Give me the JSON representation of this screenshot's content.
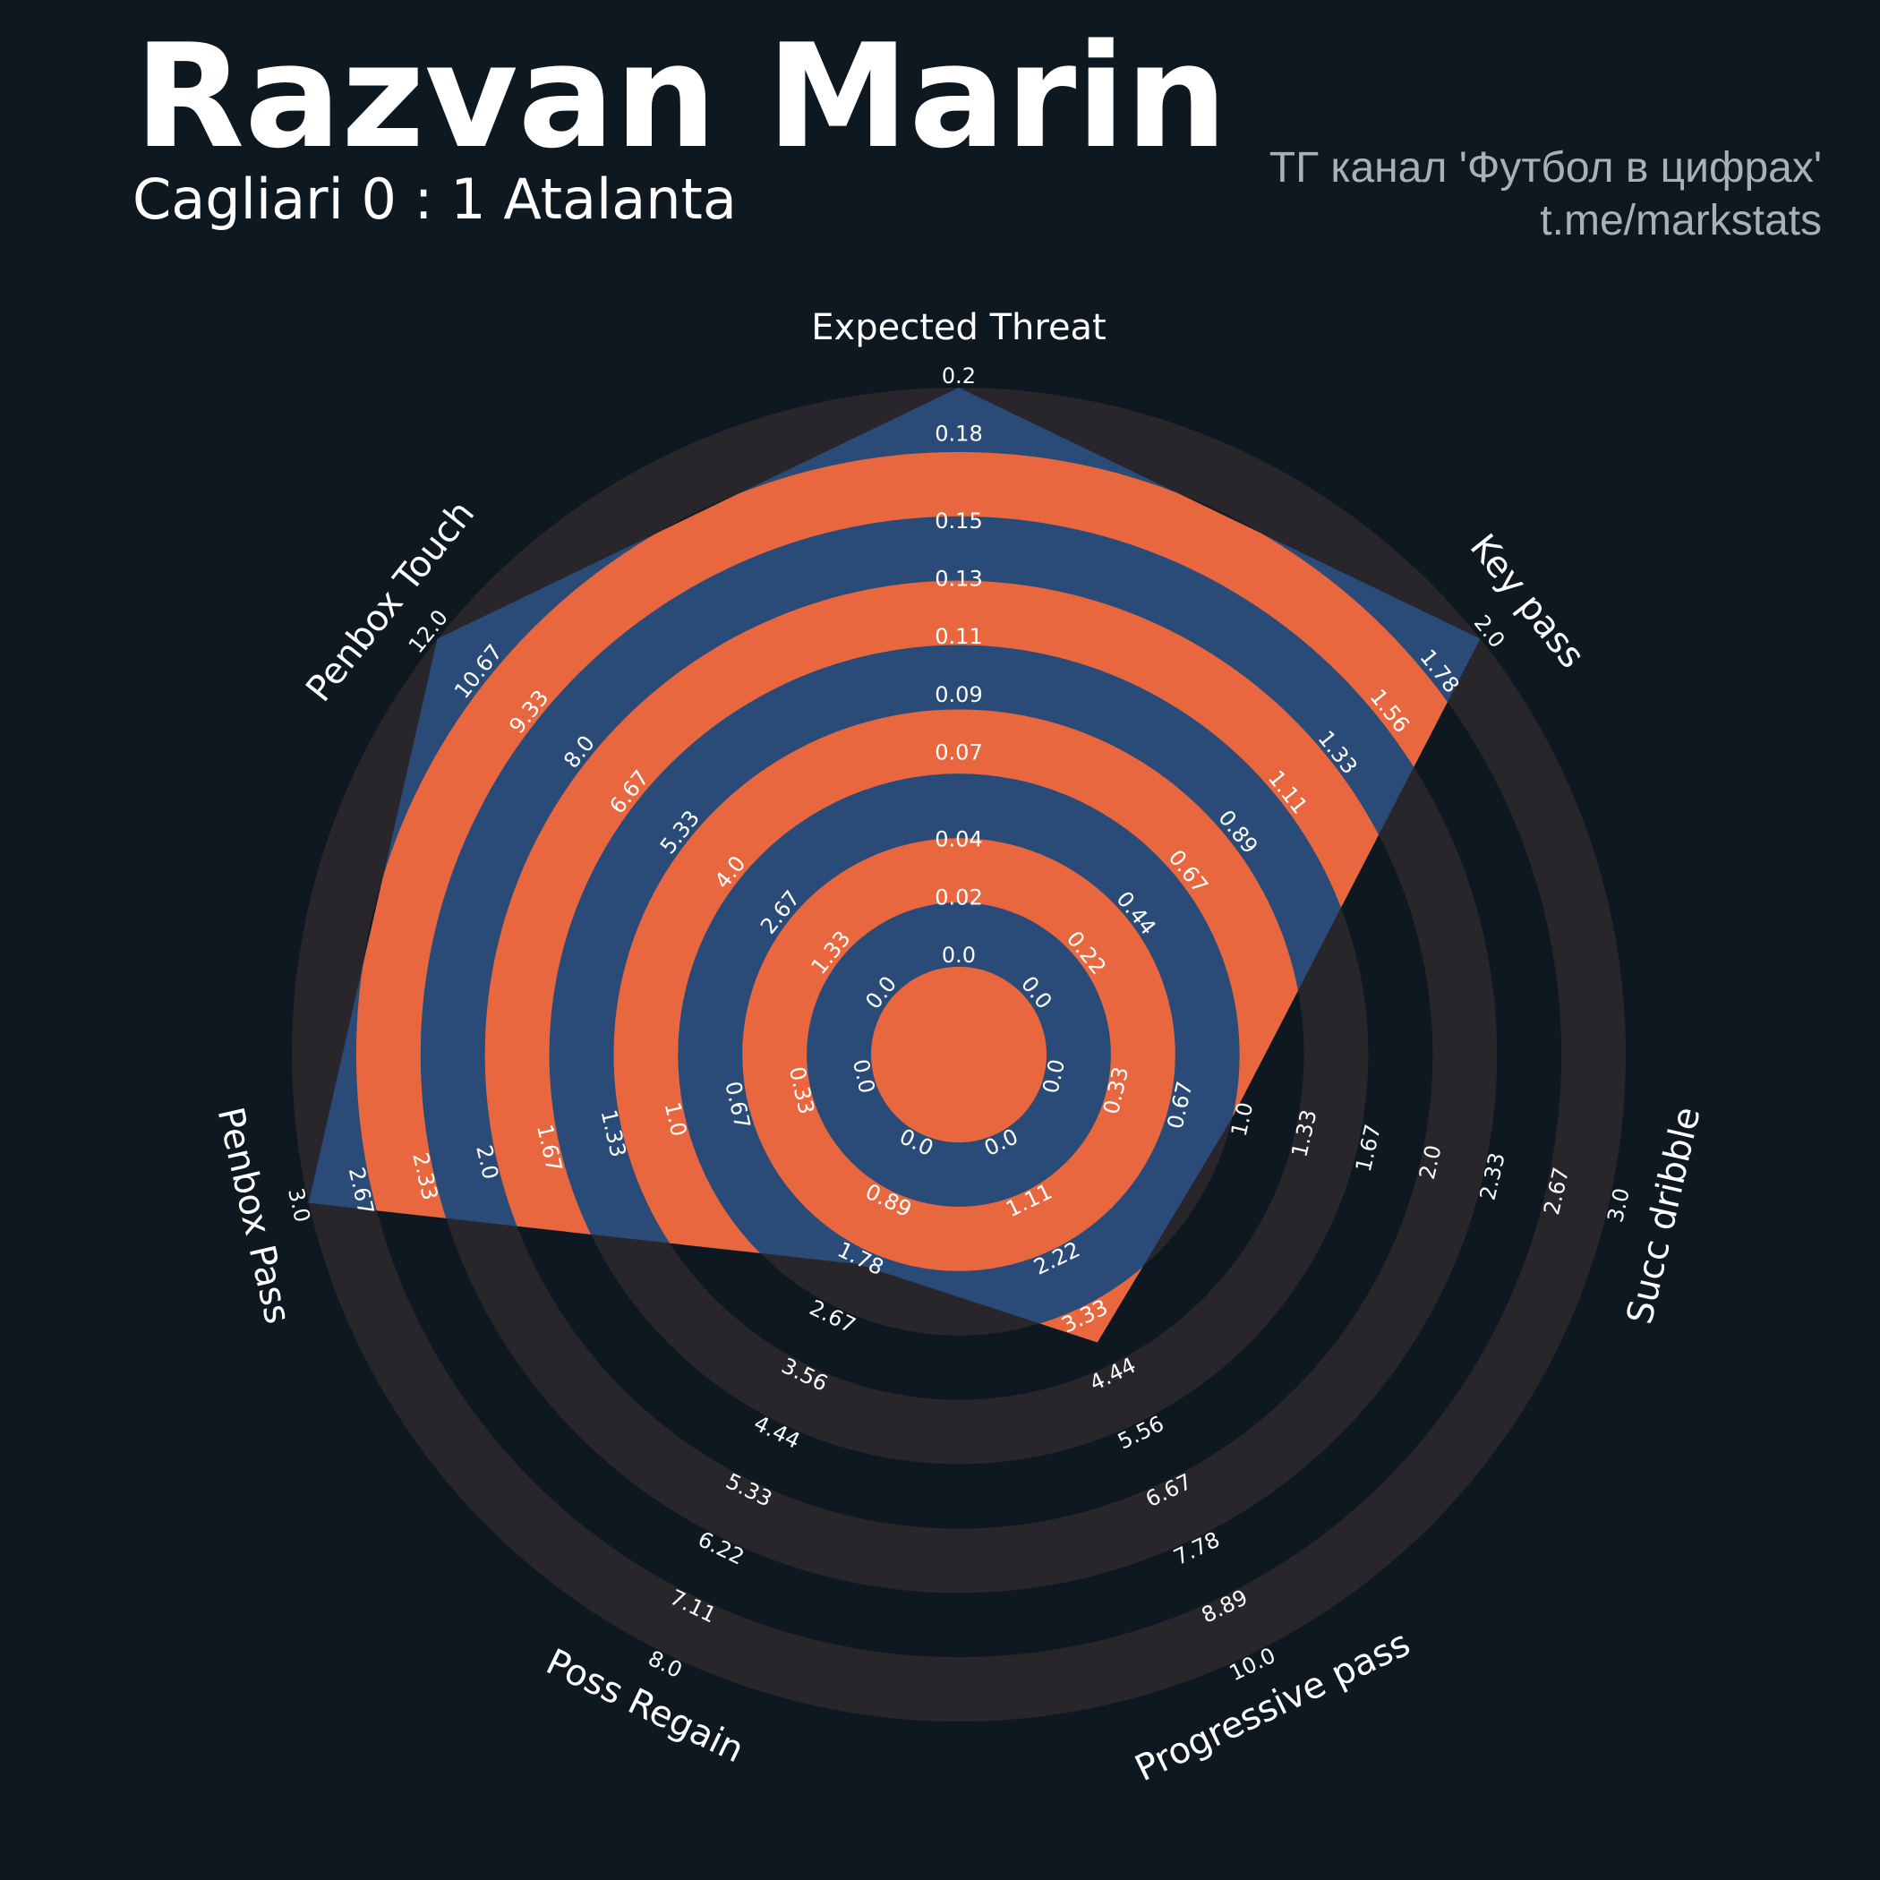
{
  "chart_data": {
    "type": "radar",
    "title": "Razvan Marin",
    "subtitle": "Cagliari 0 : 1 Atalanta",
    "annotations": [
      "ТГ канал 'Футбол в цифрах'",
      "t.me/markstats"
    ],
    "categories": [
      "Expected Threat",
      "Key pass",
      "Succ dribble",
      "Progressive pass",
      "Poss Regain",
      "Penbox Pass",
      "Penbox Touch"
    ],
    "values": [
      0.2,
      2,
      1,
      4,
      2,
      3,
      12
    ],
    "color": "#2a4b78",
    "ring_color": "#e8673f",
    "background_ring_color": "#28252b",
    "axes": [
      {
        "lim": [
          0,
          0.2
        ],
        "ticks": [
          {
            "value": 0,
            "label": "0.0"
          },
          0.02,
          0.04,
          0.07,
          0.09,
          0.11,
          0.13,
          0.15,
          0.18,
          0.2
        ]
      },
      {
        "lim": [
          0,
          2
        ],
        "ticks": [
          {
            "value": 0,
            "label": "0.0"
          },
          0.22,
          0.44,
          0.67,
          0.89,
          1.11,
          1.33,
          1.56,
          1.78,
          {
            "value": 2,
            "label": "2.0"
          }
        ]
      },
      {
        "lim": [
          0,
          3
        ],
        "ticks": [
          {
            "value": 0,
            "label": "0.0"
          },
          0.33,
          0.67,
          {
            "value": 1,
            "label": "1.0"
          },
          1.33,
          1.67,
          {
            "value": 2,
            "label": "2.0"
          },
          2.33,
          2.67,
          {
            "value": 3,
            "label": "3.0"
          }
        ]
      },
      {
        "lim": [
          0,
          10
        ],
        "ticks": [
          {
            "value": 0,
            "label": "0.0"
          },
          1.11,
          2.22,
          3.33,
          4.44,
          5.56,
          6.67,
          7.78,
          8.89,
          {
            "value": 10,
            "label": "10.0"
          }
        ]
      },
      {
        "lim": [
          0,
          8
        ],
        "ticks": [
          {
            "value": 0,
            "label": "0.0"
          },
          0.89,
          1.78,
          2.67,
          3.56,
          4.44,
          5.33,
          6.22,
          7.11,
          {
            "value": 8,
            "label": "8.0"
          }
        ]
      },
      {
        "lim": [
          0,
          3
        ],
        "ticks": [
          {
            "value": 0,
            "label": "0.0"
          },
          0.33,
          0.67,
          {
            "value": 1,
            "label": "1.0"
          },
          1.33,
          1.67,
          {
            "value": 2,
            "label": "2.0"
          },
          2.33,
          2.67,
          {
            "value": 3,
            "label": "3.0"
          }
        ]
      },
      {
        "lim": [
          0,
          12
        ],
        "ticks": [
          {
            "value": 0,
            "label": "0.0"
          },
          1.33,
          2.67,
          {
            "value": 4,
            "label": "4.0"
          },
          5.33,
          6.67,
          {
            "value": 8,
            "label": "8.0"
          },
          9.33,
          10.67,
          {
            "value": 12,
            "label": "12.0"
          }
        ]
      }
    ]
  }
}
